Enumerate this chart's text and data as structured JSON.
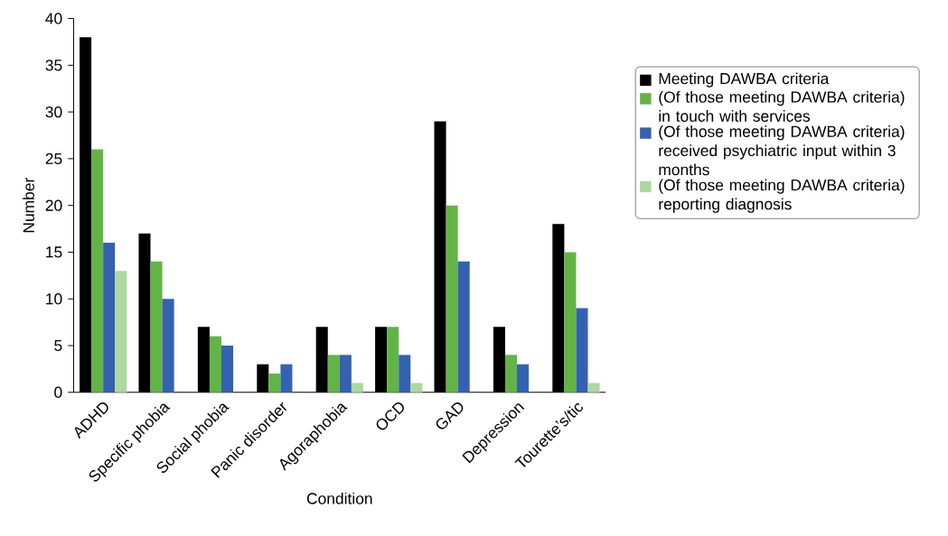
{
  "chart_data": {
    "type": "bar",
    "xlabel": "Condition",
    "ylabel": "Number",
    "categories": [
      "ADHD",
      "Specific phobia",
      "Social phobia",
      "Panic disorder",
      "Agoraphobia",
      "OCD",
      "GAD",
      "Depression",
      "Tourette’s/tic"
    ],
    "series": [
      {
        "name": "Meeting DAWBA criteria",
        "color": "#000000",
        "values": [
          38,
          17,
          7,
          3,
          7,
          7,
          29,
          7,
          18
        ]
      },
      {
        "name": "(Of those meeting DAWBA criteria) in touch with services",
        "color": "#62b446",
        "values": [
          26,
          14,
          6,
          2,
          4,
          7,
          20,
          4,
          15
        ]
      },
      {
        "name": "(Of those meeting DAWBA criteria) received psychiatric input within 3 months",
        "color": "#3461b0",
        "values": [
          16,
          10,
          5,
          3,
          4,
          4,
          14,
          3,
          9
        ]
      },
      {
        "name": "(Of those meeting DAWBA criteria) reporting diagnosis",
        "color": "#aed89e",
        "values": [
          13,
          null,
          null,
          null,
          1,
          1,
          null,
          null,
          1
        ]
      }
    ],
    "ylim": [
      0,
      40
    ],
    "yticks": [
      0,
      5,
      10,
      15,
      20,
      25,
      30,
      35,
      40
    ],
    "legend": "right",
    "grid": false
  }
}
